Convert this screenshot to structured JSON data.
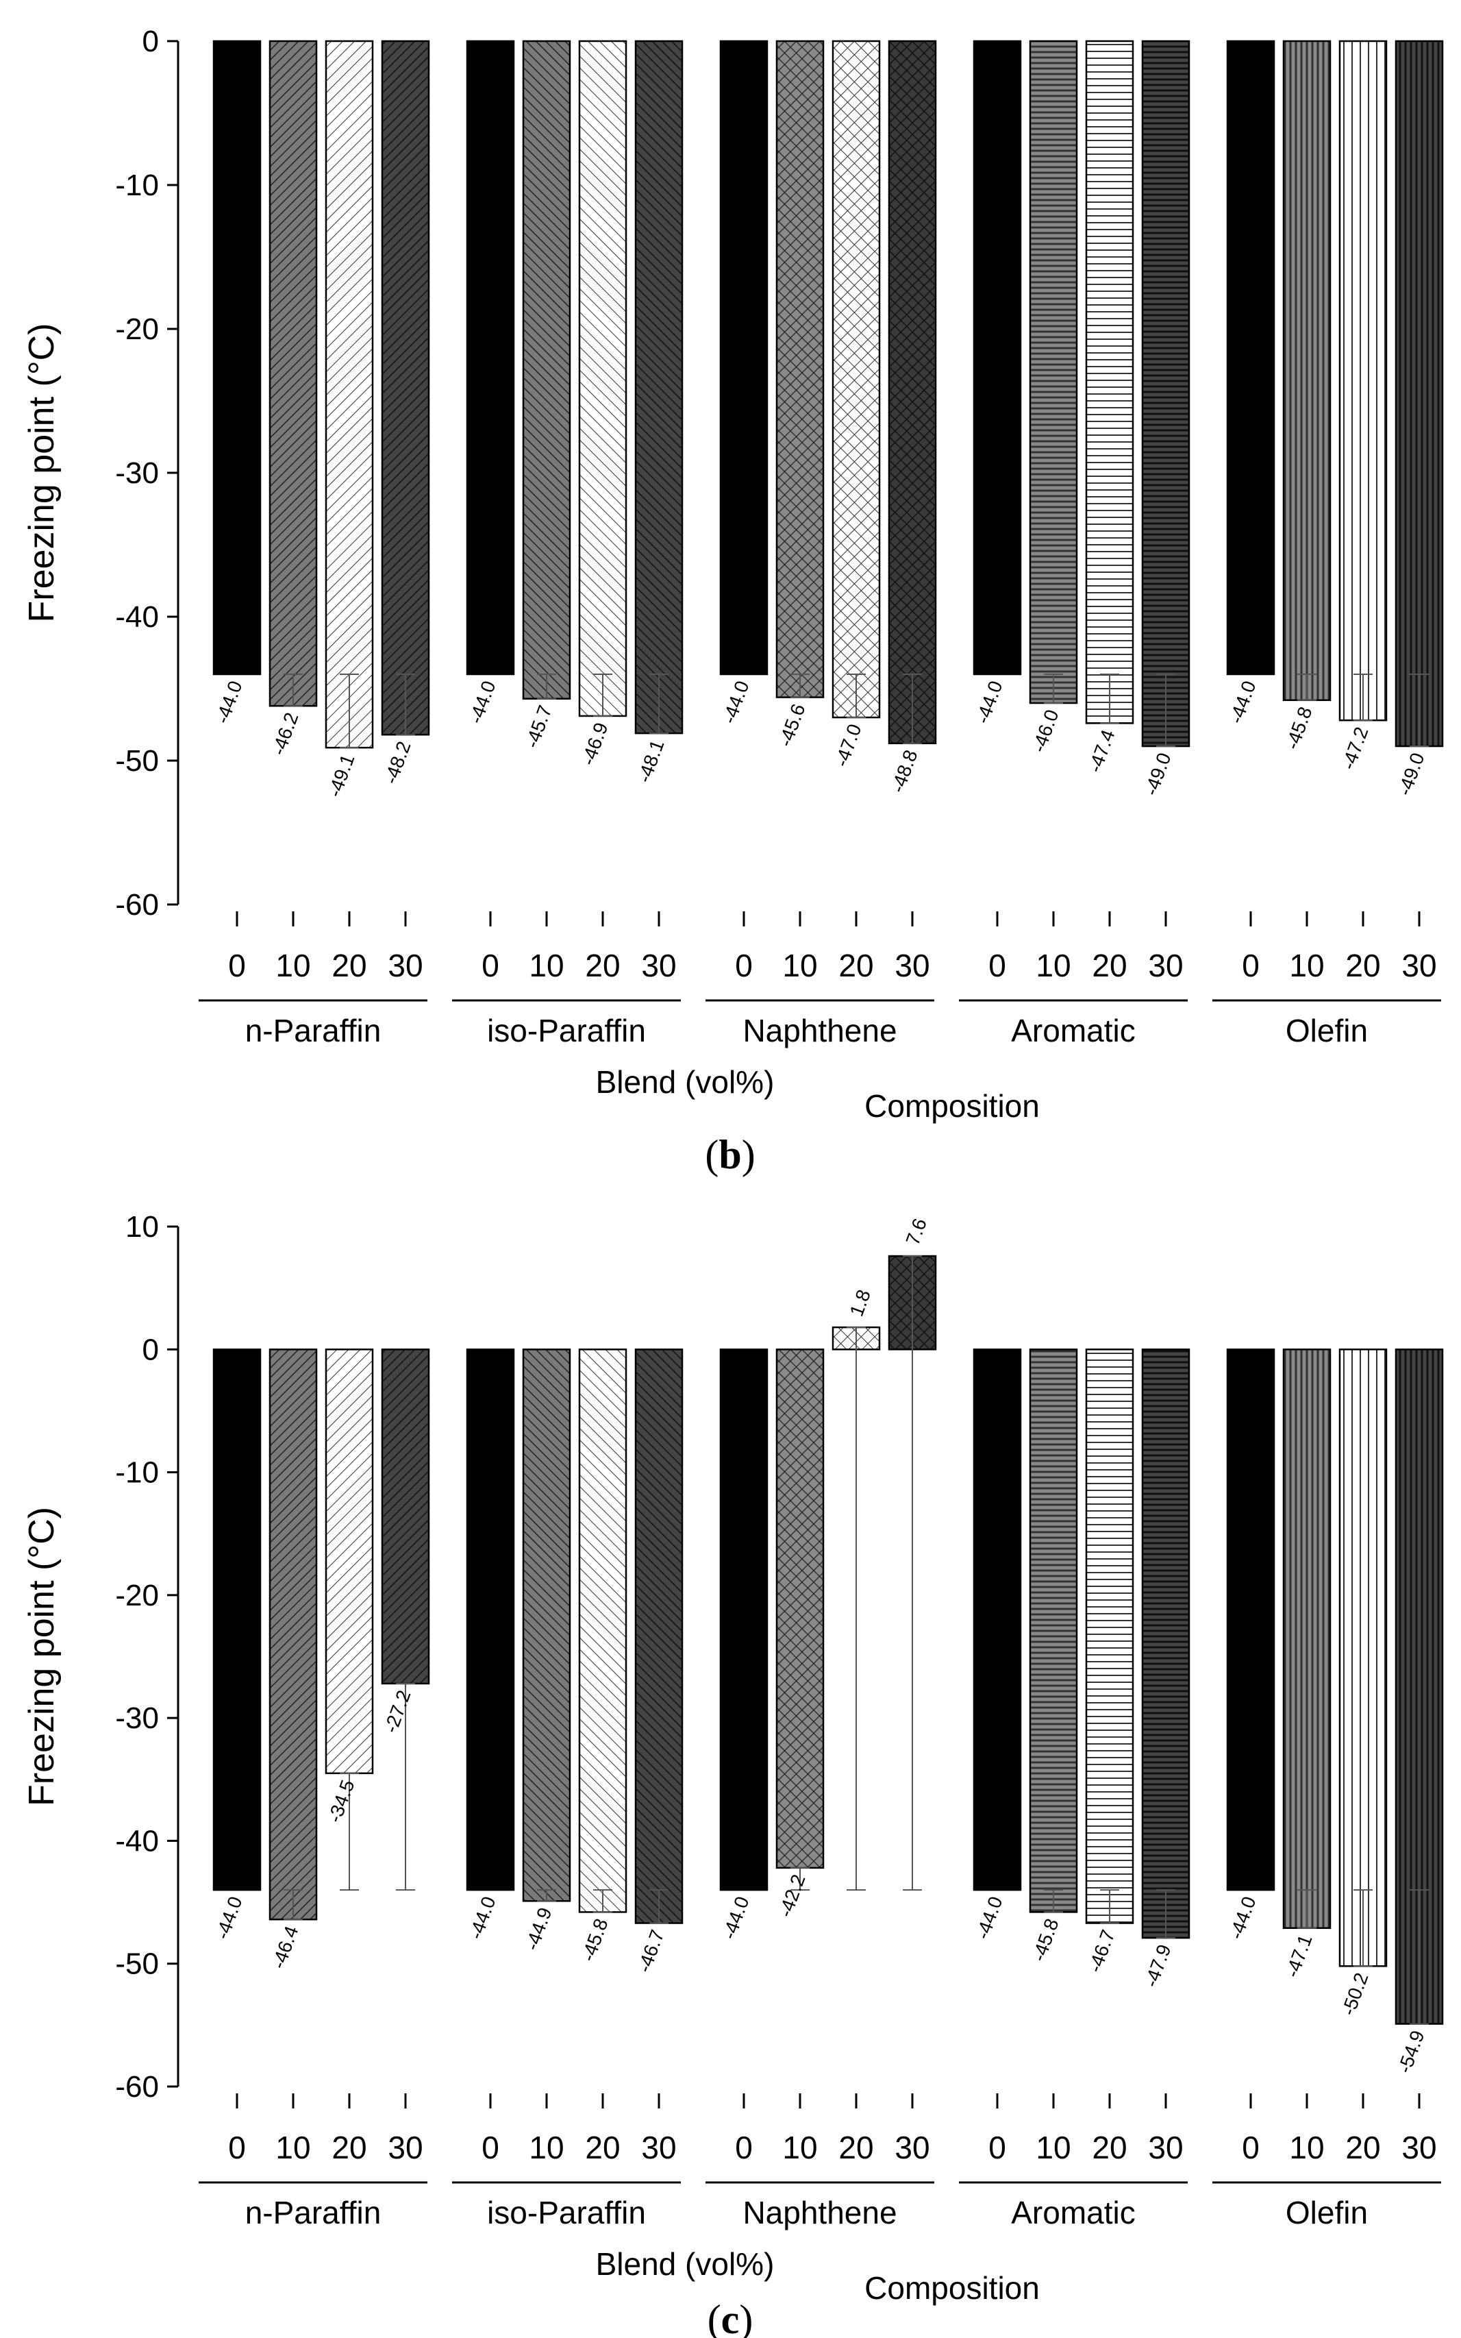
{
  "chart_data": [
    {
      "type": "bar",
      "panel_label": "b",
      "ylabel": "Freezing point (°C)",
      "ylim": [
        -60,
        0
      ],
      "yticks": [
        0,
        -10,
        -20,
        -30,
        -40,
        -50,
        -60
      ],
      "xlabel_left": "Blend (vol%)",
      "xlabel_right": "Composition",
      "groups": [
        "n-Paraffin",
        "iso-Paraffin",
        "Naphthene",
        "Aromatic",
        "Olefin"
      ],
      "blend_levels": [
        "0",
        "10",
        "20",
        "30"
      ],
      "error_reference": -44.0,
      "series": [
        {
          "name": "n-Paraffin",
          "values": [
            -44.0,
            -46.2,
            -49.1,
            -48.2
          ],
          "labels": [
            "-44.0",
            "-46.2",
            "-49.1",
            "-48.2"
          ]
        },
        {
          "name": "iso-Paraffin",
          "values": [
            -44.0,
            -45.7,
            -46.9,
            -48.1
          ],
          "labels": [
            "-44.0",
            "-45.7",
            "-46.9",
            "-48.1"
          ]
        },
        {
          "name": "Naphthene",
          "values": [
            -44.0,
            -45.6,
            -47.0,
            -48.8
          ],
          "labels": [
            "-44.0",
            "-45.6",
            "-47.0",
            "-48.8"
          ]
        },
        {
          "name": "Aromatic",
          "values": [
            -44.0,
            -46.0,
            -47.4,
            -49.0
          ],
          "labels": [
            "-44.0",
            "-46.0",
            "-47.4",
            "-49.0"
          ]
        },
        {
          "name": "Olefin",
          "values": [
            -44.0,
            -45.8,
            -47.2,
            -49.0
          ],
          "labels": [
            "-44.0",
            "-45.8",
            "-47.2",
            "-49.0"
          ]
        }
      ]
    },
    {
      "type": "bar",
      "panel_label": "c",
      "ylabel": "Freezing point (°C)",
      "ylim": [
        -60,
        10
      ],
      "yticks": [
        10,
        0,
        -10,
        -20,
        -30,
        -40,
        -50,
        -60
      ],
      "xlabel_left": "Blend (vol%)",
      "xlabel_right": "Composition",
      "groups": [
        "n-Paraffin",
        "iso-Paraffin",
        "Naphthene",
        "Aromatic",
        "Olefin"
      ],
      "blend_levels": [
        "0",
        "10",
        "20",
        "30"
      ],
      "error_reference": -44.0,
      "series": [
        {
          "name": "n-Paraffin",
          "values": [
            -44.0,
            -46.4,
            -34.5,
            -27.2
          ],
          "labels": [
            "-44.0",
            "-46.4",
            "-34.5",
            "-27.2"
          ]
        },
        {
          "name": "iso-Paraffin",
          "values": [
            -44.0,
            -44.9,
            -45.8,
            -46.7
          ],
          "labels": [
            "-44.0",
            "-44.9",
            "-45.8",
            "-46.7"
          ]
        },
        {
          "name": "Naphthene",
          "values": [
            -44.0,
            -42.2,
            1.8,
            7.6
          ],
          "labels": [
            "-44.0",
            "-42.2",
            "1.8",
            "7.6"
          ]
        },
        {
          "name": "Aromatic",
          "values": [
            -44.0,
            -45.8,
            -46.7,
            -47.9
          ],
          "labels": [
            "-44.0",
            "-45.8",
            "-46.7",
            "-47.9"
          ]
        },
        {
          "name": "Olefin",
          "values": [
            -44.0,
            -47.1,
            -50.2,
            -54.9
          ],
          "labels": [
            "-44.0",
            "-47.1",
            "-50.2",
            "-54.9"
          ]
        }
      ]
    }
  ]
}
